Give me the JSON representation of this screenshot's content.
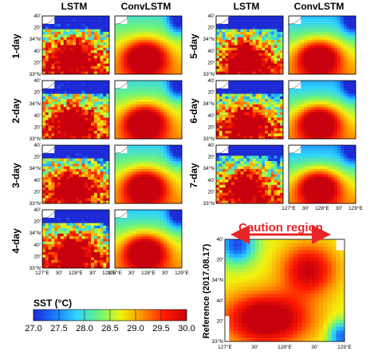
{
  "figure": {
    "columns": {
      "lstm": "LSTM",
      "convlstm": "ConvLSTM"
    },
    "rows": [
      "1-day",
      "2-day",
      "3-day",
      "4-day",
      "5-day",
      "6-day",
      "7-day"
    ],
    "reference_label": "Reference (2017.08.17)",
    "caution_label": "Caution region",
    "panel_ticks_y": [
      "40'",
      "20'",
      "34°N",
      "40'",
      "20'",
      "33°N"
    ],
    "panel_ticks_x": [
      "127°E",
      "30'",
      "128°E",
      "30'",
      "129°E"
    ],
    "ref_ticks_y": [
      "40'",
      "20'",
      "34°N",
      "40'",
      "20'",
      "33°N"
    ],
    "ref_ticks_x": [
      "127°E",
      "30'",
      "128°E",
      "30'",
      "129°E"
    ]
  },
  "chart_data": {
    "type": "heatmap",
    "title": "SST (°C)",
    "colorbar_ticks": [
      "27.0",
      "27.5",
      "28.0",
      "28.5",
      "29.0",
      "29.5",
      "30.0"
    ],
    "color_range": [
      27.0,
      30.0
    ],
    "colormap": [
      "#1d2bd6",
      "#1a7bff",
      "#2fd3ff",
      "#6cf47a",
      "#f2f20e",
      "#ff8a00",
      "#ff1a00",
      "#c8000d"
    ],
    "x_range_lon": [
      127.0,
      129.2
    ],
    "y_range_lat": [
      33.0,
      34.8
    ],
    "models": [
      "LSTM",
      "ConvLSTM"
    ],
    "lead_days": [
      1,
      2,
      3,
      4,
      5,
      6,
      7
    ],
    "caution_lon_range": [
      127.5,
      129.2
    ]
  }
}
